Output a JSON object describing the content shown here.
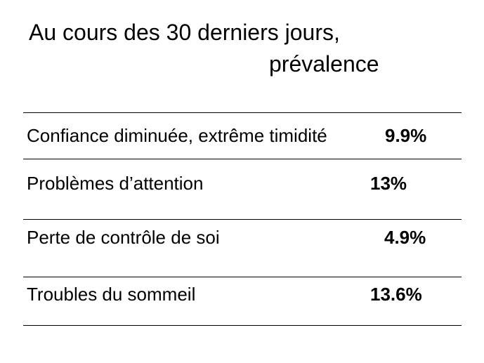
{
  "title": {
    "line1": "Au cours des 30 derniers jours,",
    "line2": "prévalence"
  },
  "rows": [
    {
      "label": "Confiance diminuée, extrême timidité",
      "value": "9.9%"
    },
    {
      "label": "Problèmes d’attention",
      "value": "13%"
    },
    {
      "label": "Perte de contrôle de soi",
      "value": "4.9%"
    },
    {
      "label": "Troubles du sommeil",
      "value": "13.6%"
    }
  ]
}
